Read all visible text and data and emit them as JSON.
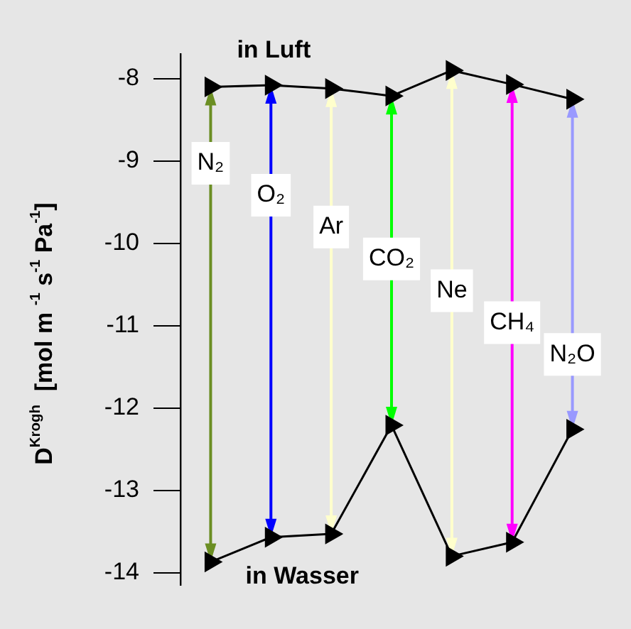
{
  "chart_data": {
    "type": "line",
    "ylabel": "D$^{Krogh}$  [mol m $^{-1}$ s$^{-1}$ Pa$^{-1}$]",
    "categories": [
      null,
      null,
      null,
      null,
      null,
      null,
      null
    ],
    "series": [
      {
        "name": "in Luft",
        "color": "#000000",
        "values": [
          -8.1,
          -8.08,
          -8.12,
          -8.21,
          -7.9,
          -8.07,
          -8.25
        ]
      },
      {
        "name": "in Wasser",
        "color": "#000000",
        "values": [
          -13.87,
          -13.57,
          -13.53,
          -12.21,
          -13.8,
          -13.63,
          -12.26
        ]
      }
    ],
    "annotations": [
      "N₂",
      "O₂",
      "Ar",
      "CO₂",
      "Ne",
      "CH₄",
      "N₂O"
    ],
    "ylim": [
      -14.15,
      -7.7
    ],
    "yticks": [
      -8,
      -9,
      -10,
      -11,
      -12,
      -13,
      -14
    ],
    "marker": "triangle",
    "tick_labels": "y"
  }
}
